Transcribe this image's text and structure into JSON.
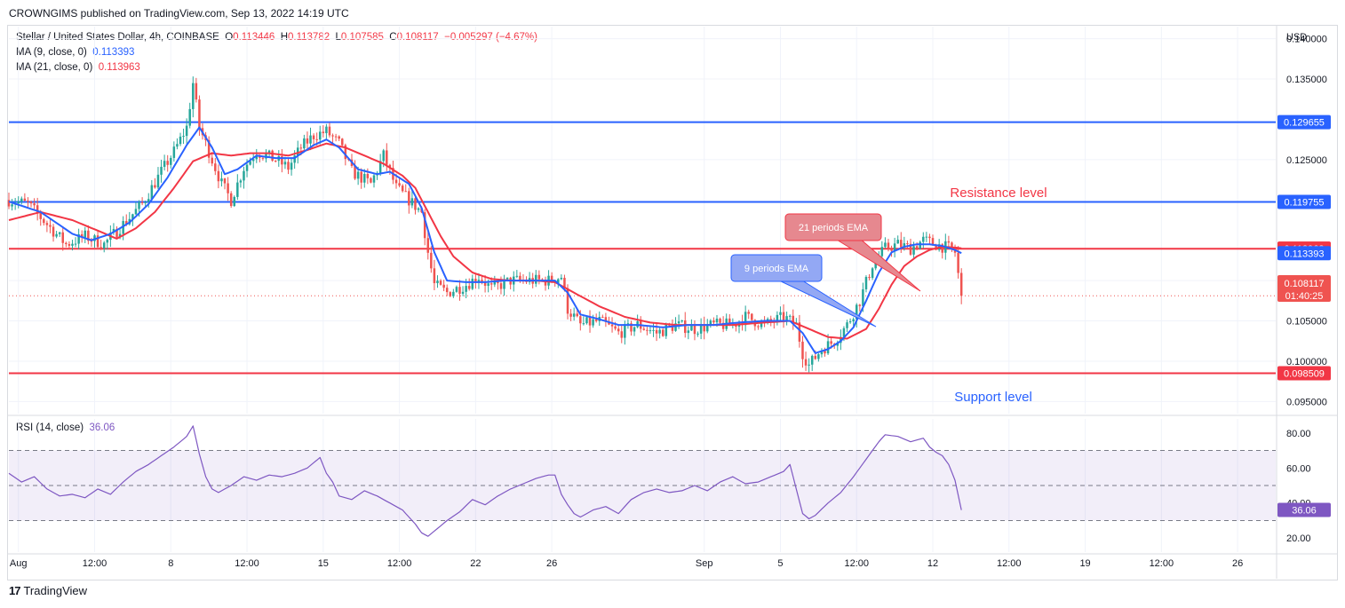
{
  "header": {
    "published_line": "CROWNGIMS published on TradingView.com, Sep 13, 2022 14:19 UTC"
  },
  "legend": {
    "symbol": "Stellar / United States Dollar, 4h, COINBASE",
    "o_label": "O",
    "o_value": "0.113446",
    "h_label": "H",
    "h_value": "0.113782",
    "l_label": "L",
    "l_value": "0.107585",
    "c_label": "C",
    "c_value": "0.108117",
    "change": "−0.005297 (−4.67%)",
    "ma9_label": "MA (9, close, 0)",
    "ma9_value": "0.113393",
    "ma21_label": "MA (21, close, 0)",
    "ma21_value": "0.113963"
  },
  "rsi_legend": {
    "label": "RSI (14, close)",
    "value": "36.06"
  },
  "footer": {
    "brand": "TradingView",
    "logo": "17"
  },
  "colors": {
    "up": "#26a69a",
    "down": "#ef5350",
    "ma9": "#2962ff",
    "ma21": "#f23645",
    "rsi": "#7e57c2",
    "hline_blue": "#2962ff",
    "hline_red": "#f23645"
  },
  "chart_data": [
    {
      "type": "candlestick",
      "currency_label": "USD",
      "ylim": [
        0.0935,
        0.1415
      ],
      "y_ticks": [
        {
          "v": 0.14,
          "label": "0.140000"
        },
        {
          "v": 0.135,
          "label": "0.135000"
        },
        {
          "v": 0.125,
          "label": "0.125000"
        },
        {
          "v": 0.11,
          "label": "0.110000"
        },
        {
          "v": 0.105,
          "label": "0.105000"
        },
        {
          "v": 0.1,
          "label": "0.100000"
        },
        {
          "v": 0.095,
          "label": "0.095000"
        }
      ],
      "x_ticks": [
        {
          "i": 3,
          "label": "Aug"
        },
        {
          "i": 27,
          "label": "12:00"
        },
        {
          "i": 51,
          "label": "8"
        },
        {
          "i": 75,
          "label": "12:00"
        },
        {
          "i": 99,
          "label": "15"
        },
        {
          "i": 123,
          "label": "12:00"
        },
        {
          "i": 147,
          "label": "22"
        },
        {
          "i": 171,
          "label": "26"
        },
        {
          "i": 219,
          "label": "Sep"
        },
        {
          "i": 243,
          "label": "5"
        },
        {
          "i": 267,
          "label": "12:00"
        },
        {
          "i": 291,
          "label": "12"
        },
        {
          "i": 315,
          "label": "12:00"
        },
        {
          "i": 339,
          "label": "19"
        },
        {
          "i": 363,
          "label": "12:00"
        },
        {
          "i": 387,
          "label": "26"
        }
      ],
      "x_range": [
        0,
        399
      ],
      "horizontal_levels": [
        {
          "value": 0.129655,
          "color": "blue",
          "label": "0.129655"
        },
        {
          "value": 0.119755,
          "color": "blue",
          "label": "0.119755"
        },
        {
          "value": 0.113945,
          "color": "red",
          "label": "0.113945"
        },
        {
          "value": 0.098509,
          "color": "red",
          "label": "0.098509"
        }
      ],
      "current_price": {
        "value": 0.108117,
        "label": "0.108117",
        "countdown": "01:40:25"
      },
      "price_badges": [
        {
          "value": 0.113963,
          "label": "0.113963",
          "color": "red"
        },
        {
          "value": 0.113393,
          "label": "0.113393",
          "color": "blue"
        }
      ],
      "candles_keypoints": [
        [
          0,
          0.12
        ],
        [
          6,
          0.1195
        ],
        [
          12,
          0.117
        ],
        [
          18,
          0.1145
        ],
        [
          24,
          0.1155
        ],
        [
          30,
          0.1145
        ],
        [
          36,
          0.117
        ],
        [
          42,
          0.1195
        ],
        [
          48,
          0.1235
        ],
        [
          52,
          0.126
        ],
        [
          56,
          0.129
        ],
        [
          58,
          0.1345
        ],
        [
          60,
          0.129
        ],
        [
          64,
          0.125
        ],
        [
          67,
          0.122
        ],
        [
          70,
          0.12
        ],
        [
          74,
          0.124
        ],
        [
          78,
          0.126
        ],
        [
          84,
          0.125
        ],
        [
          88,
          0.124
        ],
        [
          92,
          0.1265
        ],
        [
          96,
          0.128
        ],
        [
          100,
          0.1285
        ],
        [
          104,
          0.127
        ],
        [
          108,
          0.1235
        ],
        [
          114,
          0.122
        ],
        [
          118,
          0.1255
        ],
        [
          122,
          0.1215
        ],
        [
          126,
          0.12
        ],
        [
          130,
          0.1185
        ],
        [
          132,
          0.1135
        ],
        [
          134,
          0.1095
        ],
        [
          138,
          0.1085
        ],
        [
          144,
          0.1095
        ],
        [
          148,
          0.1105
        ],
        [
          152,
          0.109
        ],
        [
          158,
          0.11
        ],
        [
          164,
          0.11
        ],
        [
          170,
          0.11
        ],
        [
          174,
          0.1105
        ],
        [
          176,
          0.1065
        ],
        [
          180,
          0.1045
        ],
        [
          186,
          0.105
        ],
        [
          192,
          0.1035
        ],
        [
          198,
          0.1045
        ],
        [
          204,
          0.1035
        ],
        [
          210,
          0.1045
        ],
        [
          216,
          0.104
        ],
        [
          222,
          0.1045
        ],
        [
          228,
          0.1045
        ],
        [
          232,
          0.1055
        ],
        [
          238,
          0.1045
        ],
        [
          244,
          0.1055
        ],
        [
          248,
          0.1045
        ],
        [
          250,
          0.101
        ],
        [
          252,
          0.0995
        ],
        [
          256,
          0.1015
        ],
        [
          260,
          0.1025
        ],
        [
          264,
          0.1045
        ],
        [
          268,
          0.1075
        ],
        [
          272,
          0.112
        ],
        [
          276,
          0.114
        ],
        [
          280,
          0.1145
        ],
        [
          284,
          0.114
        ],
        [
          288,
          0.115
        ],
        [
          292,
          0.1145
        ],
        [
          296,
          0.114
        ],
        [
          298,
          0.1135
        ],
        [
          300,
          0.1081
        ]
      ],
      "ma9_keypoints": [
        [
          0,
          0.1198
        ],
        [
          10,
          0.1185
        ],
        [
          20,
          0.1158
        ],
        [
          26,
          0.115
        ],
        [
          32,
          0.1158
        ],
        [
          38,
          0.1172
        ],
        [
          44,
          0.1195
        ],
        [
          50,
          0.1228
        ],
        [
          56,
          0.1268
        ],
        [
          60,
          0.129
        ],
        [
          64,
          0.1265
        ],
        [
          68,
          0.1232
        ],
        [
          72,
          0.1238
        ],
        [
          78,
          0.1255
        ],
        [
          84,
          0.1252
        ],
        [
          90,
          0.1252
        ],
        [
          96,
          0.1268
        ],
        [
          100,
          0.1275
        ],
        [
          104,
          0.1265
        ],
        [
          110,
          0.1238
        ],
        [
          116,
          0.1232
        ],
        [
          120,
          0.1235
        ],
        [
          126,
          0.122
        ],
        [
          130,
          0.119
        ],
        [
          134,
          0.1135
        ],
        [
          138,
          0.11
        ],
        [
          144,
          0.1098
        ],
        [
          150,
          0.1098
        ],
        [
          156,
          0.11
        ],
        [
          164,
          0.11
        ],
        [
          172,
          0.11
        ],
        [
          176,
          0.1085
        ],
        [
          180,
          0.1058
        ],
        [
          186,
          0.1052
        ],
        [
          192,
          0.1045
        ],
        [
          198,
          0.1045
        ],
        [
          206,
          0.1042
        ],
        [
          214,
          0.1045
        ],
        [
          222,
          0.1045
        ],
        [
          230,
          0.1048
        ],
        [
          238,
          0.105
        ],
        [
          246,
          0.105
        ],
        [
          250,
          0.1035
        ],
        [
          254,
          0.101
        ],
        [
          258,
          0.1015
        ],
        [
          262,
          0.1025
        ],
        [
          266,
          0.1042
        ],
        [
          270,
          0.1075
        ],
        [
          274,
          0.111
        ],
        [
          278,
          0.1135
        ],
        [
          282,
          0.1142
        ],
        [
          286,
          0.1145
        ],
        [
          290,
          0.1145
        ],
        [
          294,
          0.1143
        ],
        [
          298,
          0.1138
        ],
        [
          300,
          0.1134
        ]
      ],
      "ma21_keypoints": [
        [
          0,
          0.1175
        ],
        [
          10,
          0.1185
        ],
        [
          20,
          0.1175
        ],
        [
          28,
          0.1162
        ],
        [
          34,
          0.1152
        ],
        [
          40,
          0.1165
        ],
        [
          46,
          0.1185
        ],
        [
          52,
          0.1215
        ],
        [
          58,
          0.1248
        ],
        [
          64,
          0.1258
        ],
        [
          70,
          0.1255
        ],
        [
          76,
          0.1258
        ],
        [
          82,
          0.1258
        ],
        [
          88,
          0.1255
        ],
        [
          94,
          0.1262
        ],
        [
          100,
          0.127
        ],
        [
          106,
          0.1265
        ],
        [
          112,
          0.1255
        ],
        [
          118,
          0.1245
        ],
        [
          124,
          0.123
        ],
        [
          128,
          0.1215
        ],
        [
          132,
          0.1185
        ],
        [
          136,
          0.1155
        ],
        [
          140,
          0.113
        ],
        [
          146,
          0.111
        ],
        [
          152,
          0.1102
        ],
        [
          158,
          0.11
        ],
        [
          166,
          0.11
        ],
        [
          172,
          0.1098
        ],
        [
          178,
          0.1085
        ],
        [
          186,
          0.1068
        ],
        [
          194,
          0.1055
        ],
        [
          202,
          0.1048
        ],
        [
          210,
          0.1045
        ],
        [
          218,
          0.1045
        ],
        [
          228,
          0.1045
        ],
        [
          238,
          0.1048
        ],
        [
          246,
          0.105
        ],
        [
          252,
          0.104
        ],
        [
          258,
          0.103
        ],
        [
          264,
          0.1028
        ],
        [
          270,
          0.104
        ],
        [
          274,
          0.1065
        ],
        [
          278,
          0.1095
        ],
        [
          282,
          0.1118
        ],
        [
          286,
          0.113
        ],
        [
          290,
          0.1138
        ],
        [
          294,
          0.1142
        ],
        [
          298,
          0.1141
        ],
        [
          300,
          0.114
        ]
      ],
      "annotations": {
        "resistance_label": "Resistance level",
        "support_label": "Support level",
        "ema21_label": "21 periods EMA",
        "ema9_label": "9 periods EMA"
      }
    },
    {
      "type": "line",
      "name": "RSI (14, close)",
      "ylim": [
        12,
        88
      ],
      "y_ticks": [
        {
          "v": 80,
          "label": "80.00"
        },
        {
          "v": 60,
          "label": "60.00"
        },
        {
          "v": 40,
          "label": "40.00"
        },
        {
          "v": 20,
          "label": "20.00"
        }
      ],
      "band": [
        30,
        70
      ],
      "midline": 50,
      "current": {
        "value": 36.06,
        "label": "36.06"
      },
      "keypoints": [
        [
          0,
          57
        ],
        [
          4,
          52
        ],
        [
          8,
          55
        ],
        [
          12,
          48
        ],
        [
          16,
          44
        ],
        [
          20,
          45
        ],
        [
          24,
          43
        ],
        [
          28,
          48
        ],
        [
          32,
          45
        ],
        [
          36,
          52
        ],
        [
          40,
          58
        ],
        [
          44,
          62
        ],
        [
          48,
          67
        ],
        [
          52,
          72
        ],
        [
          56,
          78
        ],
        [
          58,
          84
        ],
        [
          60,
          68
        ],
        [
          62,
          55
        ],
        [
          64,
          48
        ],
        [
          66,
          46
        ],
        [
          70,
          50
        ],
        [
          74,
          55
        ],
        [
          78,
          53
        ],
        [
          82,
          56
        ],
        [
          86,
          55
        ],
        [
          90,
          57
        ],
        [
          94,
          60
        ],
        [
          96,
          63
        ],
        [
          98,
          66
        ],
        [
          100,
          57
        ],
        [
          102,
          52
        ],
        [
          104,
          44
        ],
        [
          108,
          42
        ],
        [
          112,
          47
        ],
        [
          116,
          44
        ],
        [
          120,
          40
        ],
        [
          124,
          36
        ],
        [
          128,
          28
        ],
        [
          130,
          23
        ],
        [
          132,
          21
        ],
        [
          134,
          24
        ],
        [
          138,
          30
        ],
        [
          142,
          35
        ],
        [
          146,
          42
        ],
        [
          150,
          39
        ],
        [
          154,
          44
        ],
        [
          158,
          48
        ],
        [
          162,
          51
        ],
        [
          166,
          54
        ],
        [
          170,
          56
        ],
        [
          172,
          56
        ],
        [
          174,
          45
        ],
        [
          176,
          39
        ],
        [
          178,
          34
        ],
        [
          180,
          32
        ],
        [
          184,
          36
        ],
        [
          188,
          38
        ],
        [
          192,
          34
        ],
        [
          196,
          42
        ],
        [
          200,
          46
        ],
        [
          204,
          48
        ],
        [
          208,
          46
        ],
        [
          212,
          47
        ],
        [
          216,
          50
        ],
        [
          220,
          47
        ],
        [
          224,
          52
        ],
        [
          228,
          55
        ],
        [
          232,
          51
        ],
        [
          236,
          52
        ],
        [
          240,
          55
        ],
        [
          244,
          58
        ],
        [
          246,
          62
        ],
        [
          248,
          48
        ],
        [
          250,
          34
        ],
        [
          252,
          31
        ],
        [
          254,
          33
        ],
        [
          258,
          40
        ],
        [
          262,
          46
        ],
        [
          266,
          55
        ],
        [
          270,
          65
        ],
        [
          274,
          75
        ],
        [
          276,
          79
        ],
        [
          280,
          78
        ],
        [
          284,
          75
        ],
        [
          288,
          77
        ],
        [
          290,
          72
        ],
        [
          292,
          69
        ],
        [
          294,
          67
        ],
        [
          296,
          62
        ],
        [
          298,
          53
        ],
        [
          300,
          36
        ]
      ]
    }
  ]
}
